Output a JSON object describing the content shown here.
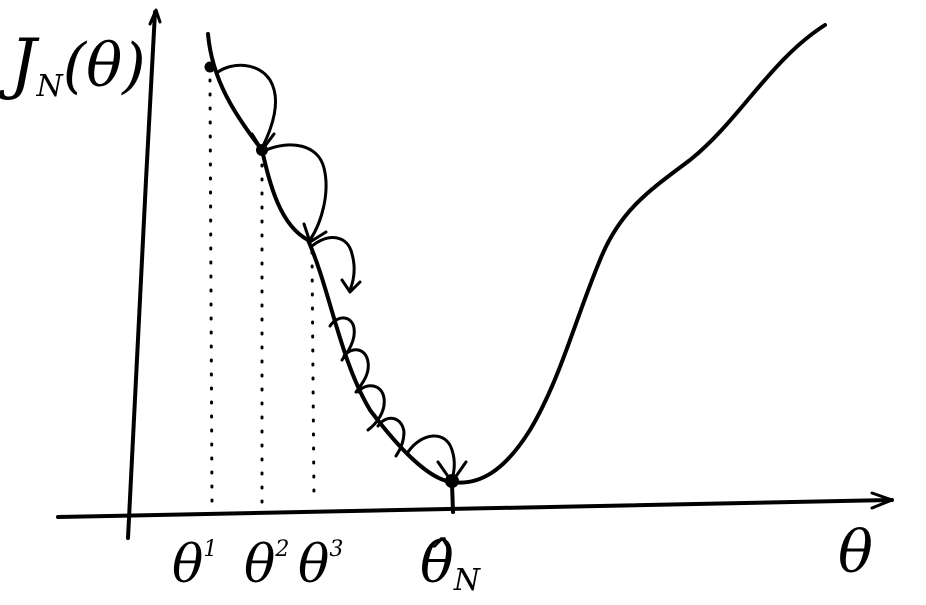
{
  "labels": {
    "y_axis": "J",
    "y_axis_sub": "N",
    "y_axis_arg": "(θ)",
    "x_axis": "θ",
    "theta1": "θ",
    "theta1_sup": "1",
    "theta2": "θ",
    "theta2_sup": "2",
    "theta3": "θ",
    "theta3_sup": "3",
    "theta_hat": "θ̂",
    "theta_hat_sub": "N"
  },
  "colors": {
    "ink": "#000000",
    "background": "#ffffff"
  }
}
